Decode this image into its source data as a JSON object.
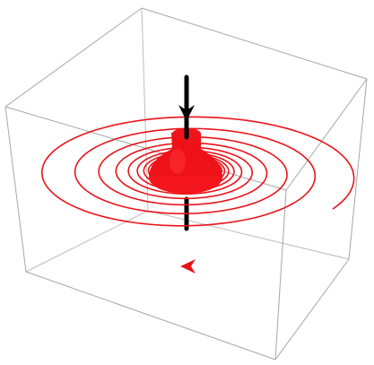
{
  "colors": {
    "background": "#ffffff",
    "box_edge": "#a6a6a6",
    "spiral": "#e8141a",
    "axis": "#000000"
  },
  "elements": {
    "box": "wireframe-box",
    "spiral": "spiral-curve",
    "cone": "cone-surface",
    "axis": "vertical-axis",
    "axis_arrow": "down-arrow-icon",
    "spiral_arrow": "left-arrow-icon"
  }
}
